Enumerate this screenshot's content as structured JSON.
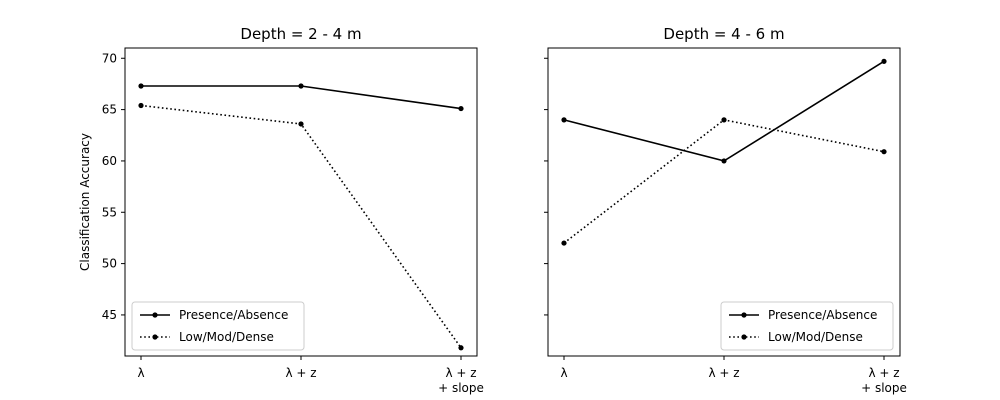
{
  "chart_data": {
    "type": "line",
    "ylabel": "Classification Accuracy",
    "ylim": [
      41,
      71
    ],
    "yticks": [
      45,
      50,
      55,
      60,
      65,
      70
    ],
    "categories": [
      [
        "λ"
      ],
      [
        "λ + z"
      ],
      [
        "λ + z",
        "+ slope"
      ]
    ],
    "grid": false,
    "legend_position": "lower-right",
    "shared_y": true,
    "panels": [
      {
        "title": "Depth = 2 - 4 m",
        "legend_position": "lower-left",
        "series": [
          {
            "name": "Presence/Absence",
            "style": "solid",
            "values": [
              67.3,
              67.3,
              65.1
            ]
          },
          {
            "name": "Low/Mod/Dense",
            "style": "dotted",
            "values": [
              65.4,
              63.6,
              41.8
            ]
          }
        ]
      },
      {
        "title": "Depth = 4 - 6 m",
        "legend_position": "lower-right",
        "series": [
          {
            "name": "Presence/Absence",
            "style": "solid",
            "values": [
              64.0,
              60.0,
              69.7
            ]
          },
          {
            "name": "Low/Mod/Dense",
            "style": "dotted",
            "values": [
              52.0,
              64.0,
              60.9
            ]
          }
        ]
      }
    ],
    "line_color": "#000000"
  }
}
